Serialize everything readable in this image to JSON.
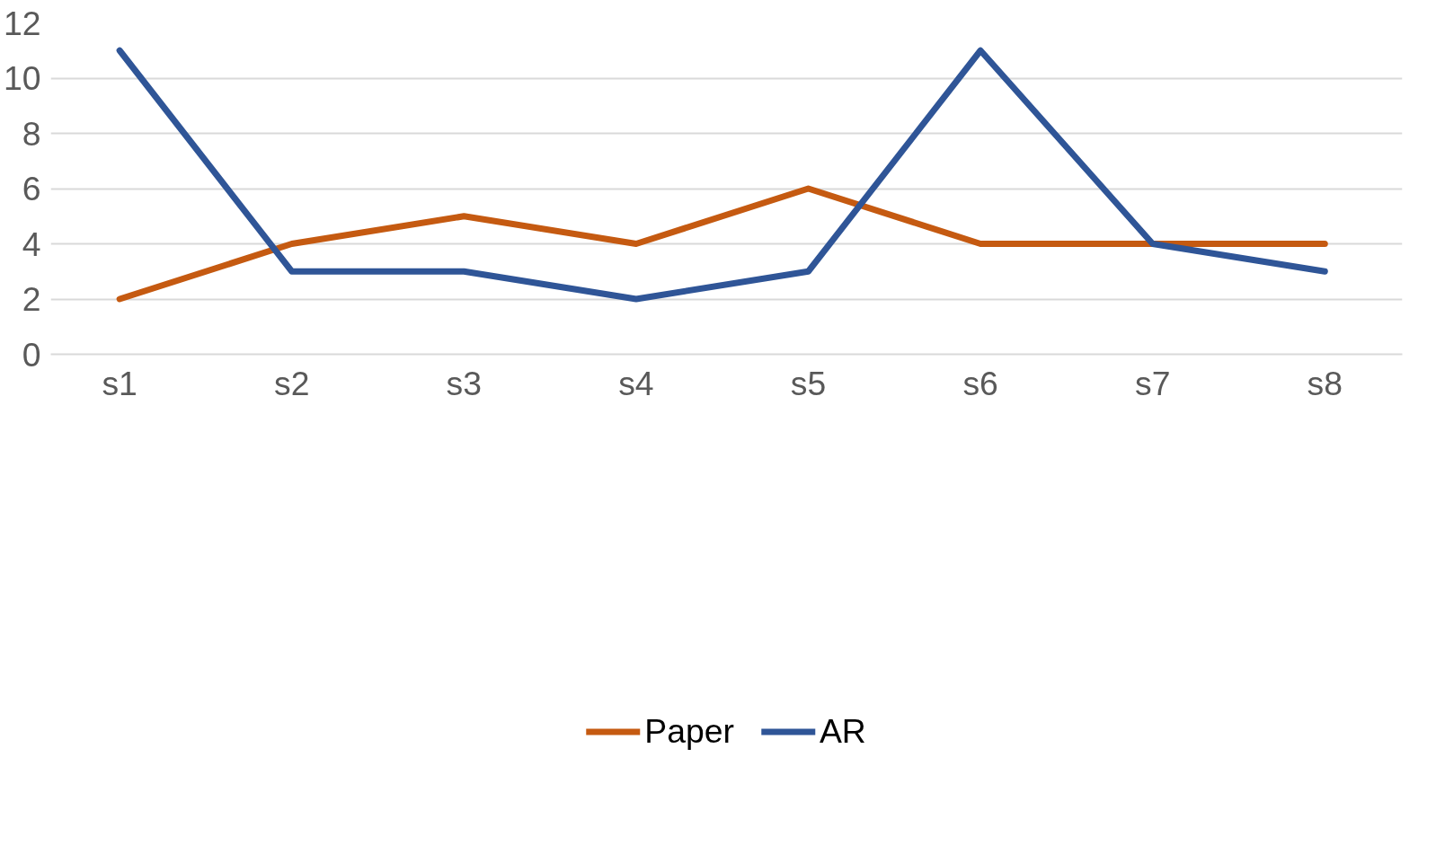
{
  "chart_data": {
    "type": "line",
    "categories": [
      "s1",
      "s2",
      "s3",
      "s4",
      "s5",
      "s6",
      "s7",
      "s8"
    ],
    "series": [
      {
        "name": "Paper",
        "color": "#c55a11",
        "values": [
          2,
          4,
          5,
          4,
          6,
          4,
          4,
          4
        ]
      },
      {
        "name": "AR",
        "color": "#2f5597",
        "values": [
          11,
          3,
          3,
          2,
          3,
          11,
          4,
          3
        ]
      }
    ],
    "ylim": [
      0,
      12
    ],
    "yticks": [
      0,
      2,
      4,
      6,
      8,
      10,
      12
    ],
    "grid": "y",
    "legend": "bottom",
    "marker": "none",
    "line_style": "solid"
  }
}
